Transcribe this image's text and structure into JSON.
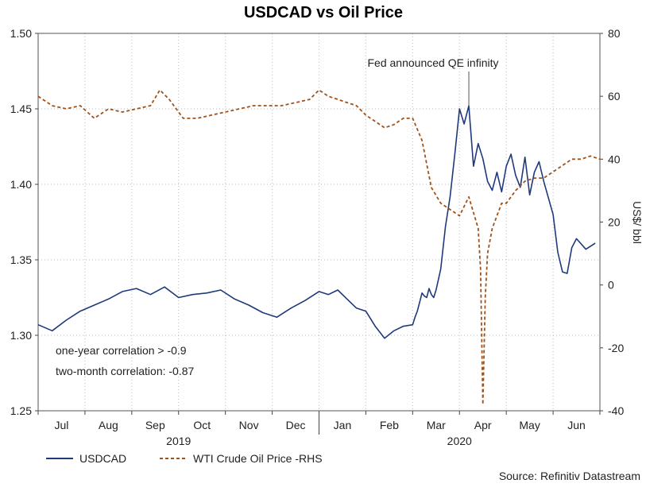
{
  "chart_data": {
    "type": "line",
    "title": "USDCAD vs Oil Price",
    "y_left": {
      "min": 1.25,
      "max": 1.5,
      "ticks": [
        "1.25",
        "1.30",
        "1.35",
        "1.40",
        "1.45",
        "1.50"
      ]
    },
    "y_right": {
      "min": -40,
      "max": 80,
      "ticks": [
        "-40",
        "-20",
        "0",
        "20",
        "40",
        "60",
        "80"
      ],
      "label": "US$/ bbl"
    },
    "x_months": [
      "Jul",
      "Aug",
      "Sep",
      "Oct",
      "Nov",
      "Dec",
      "Jan",
      "Feb",
      "Mar",
      "Apr",
      "May",
      "Jun"
    ],
    "years": [
      "2019",
      "2020"
    ],
    "annotation": "Fed announced QE infinity",
    "notes": [
      "one-year correlation > -0.9",
      "two-month correlation: -0.87"
    ],
    "legend": [
      "USDCAD",
      "WTI Crude Oil Price -RHS"
    ],
    "source": "Source: Refinitiv Datastream",
    "colors": {
      "usdcad": "#1f3a7a",
      "oil": "#a0521a",
      "grid": "#b8b8b8"
    },
    "series": [
      {
        "name": "USDCAD",
        "axis": "left",
        "t": [
          0.0,
          0.3,
          0.6,
          0.9,
          1.2,
          1.5,
          1.8,
          2.1,
          2.4,
          2.7,
          3.0,
          3.3,
          3.6,
          3.9,
          4.2,
          4.5,
          4.8,
          5.1,
          5.4,
          5.7,
          6.0,
          6.2,
          6.4,
          6.6,
          6.8,
          7.0,
          7.2,
          7.4,
          7.6,
          7.8,
          8.0,
          8.05,
          8.1,
          8.15,
          8.2,
          8.25,
          8.3,
          8.35,
          8.4,
          8.45,
          8.5,
          8.6,
          8.7,
          8.8,
          8.9,
          9.0,
          9.1,
          9.2,
          9.3,
          9.4,
          9.5,
          9.6,
          9.7,
          9.8,
          9.9,
          10.0,
          10.1,
          10.2,
          10.3,
          10.4,
          10.5,
          10.6,
          10.7,
          10.8,
          10.9,
          11.0,
          11.1,
          11.2,
          11.3,
          11.4,
          11.5,
          11.7,
          11.9
        ],
        "values": [
          1.307,
          1.303,
          1.31,
          1.316,
          1.32,
          1.324,
          1.329,
          1.331,
          1.327,
          1.332,
          1.325,
          1.327,
          1.328,
          1.33,
          1.324,
          1.32,
          1.315,
          1.312,
          1.318,
          1.323,
          1.329,
          1.327,
          1.33,
          1.324,
          1.318,
          1.316,
          1.306,
          1.298,
          1.303,
          1.306,
          1.307,
          1.312,
          1.316,
          1.322,
          1.328,
          1.326,
          1.325,
          1.331,
          1.327,
          1.325,
          1.33,
          1.344,
          1.372,
          1.392,
          1.42,
          1.45,
          1.44,
          1.452,
          1.412,
          1.427,
          1.417,
          1.402,
          1.396,
          1.408,
          1.395,
          1.412,
          1.42,
          1.406,
          1.398,
          1.418,
          1.393,
          1.408,
          1.415,
          1.402,
          1.391,
          1.38,
          1.355,
          1.342,
          1.341,
          1.358,
          1.364,
          1.357,
          1.361
        ]
      },
      {
        "name": "WTI Crude Oil Price -RHS",
        "axis": "right",
        "t": [
          0.0,
          0.3,
          0.6,
          0.9,
          1.2,
          1.5,
          1.8,
          2.1,
          2.4,
          2.6,
          2.8,
          3.1,
          3.4,
          3.7,
          4.0,
          4.3,
          4.6,
          4.9,
          5.2,
          5.5,
          5.8,
          6.0,
          6.2,
          6.4,
          6.6,
          6.8,
          7.0,
          7.2,
          7.4,
          7.6,
          7.8,
          8.0,
          8.2,
          8.4,
          8.6,
          8.8,
          9.0,
          9.2,
          9.4,
          9.45,
          9.5,
          9.55,
          9.6,
          9.7,
          9.8,
          9.9,
          10.0,
          10.2,
          10.4,
          10.6,
          10.8,
          11.0,
          11.2,
          11.4,
          11.6,
          11.8,
          12.0
        ],
        "values": [
          60,
          57,
          56,
          57,
          53,
          56,
          55,
          56,
          57,
          62,
          59,
          53,
          53,
          54,
          55,
          56,
          57,
          57,
          57,
          58,
          59,
          62,
          60,
          59,
          58,
          57,
          54,
          52,
          50,
          51,
          53,
          53,
          46,
          31,
          26,
          24,
          22,
          28,
          18,
          5,
          -38,
          -4,
          10,
          18,
          22,
          26,
          26,
          30,
          33,
          34,
          34,
          36,
          38,
          40,
          40,
          41,
          40
        ]
      }
    ]
  }
}
